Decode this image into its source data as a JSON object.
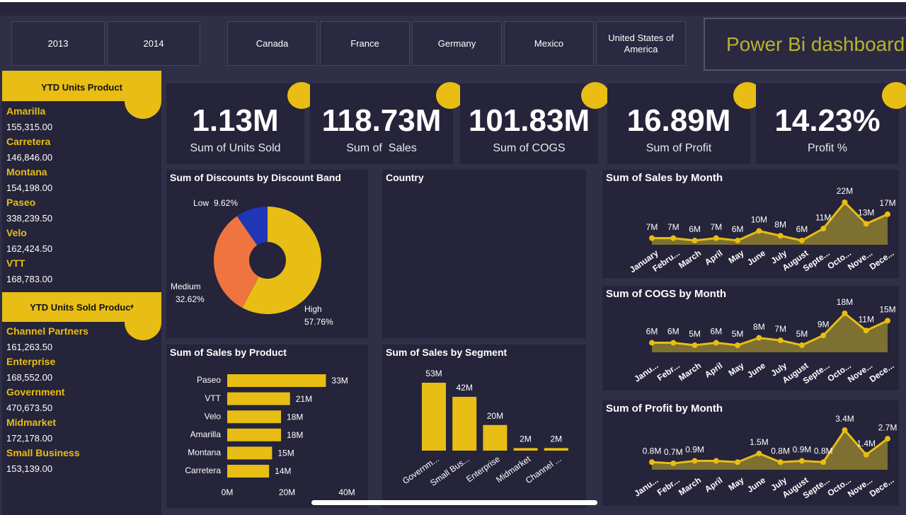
{
  "filters": {
    "years": [
      "2013",
      "2014"
    ],
    "countries": [
      "Canada",
      "France",
      "Germany",
      "Mexico",
      "United States of America"
    ]
  },
  "banner": "Power Bi dashboard",
  "sidebar": [
    {
      "title": "YTD Units Product",
      "items": [
        {
          "name": "Amarilla",
          "value": "155,315.00"
        },
        {
          "name": "Carretera",
          "value": "146,846.00"
        },
        {
          "name": "Montana",
          "value": "154,198.00"
        },
        {
          "name": "Paseo",
          "value": "338,239.50"
        },
        {
          "name": "Velo",
          "value": "162,424.50"
        },
        {
          "name": "VTT",
          "value": "168,783.00"
        }
      ]
    },
    {
      "title": "YTD Units Sold Product",
      "items": [
        {
          "name": "Channel Partners",
          "value": "161,263.50"
        },
        {
          "name": "Enterprise",
          "value": "168,552.00"
        },
        {
          "name": "Government",
          "value": "470,673.50"
        },
        {
          "name": "Midmarket",
          "value": "172,178.00"
        },
        {
          "name": "Small Business",
          "value": "153,139.00"
        }
      ]
    }
  ],
  "kpis": [
    {
      "value": "1.13M",
      "label": "Sum of Units Sold"
    },
    {
      "value": "118.73M",
      "label": "Sum of  Sales"
    },
    {
      "value": "101.83M",
      "label": "Sum of COGS"
    },
    {
      "value": "16.89M",
      "label": "Sum of Profit"
    },
    {
      "value": "14.23%",
      "label": "Profit %"
    }
  ],
  "country_panel": {
    "title": "Country"
  },
  "chart_data": [
    {
      "type": "donut",
      "title": "Sum of Discounts by Discount Band",
      "categories": [
        "Low",
        "Medium",
        "High"
      ],
      "values": [
        9.62,
        32.62,
        57.76
      ],
      "value_labels": [
        "9.62%",
        "32.62%",
        "57.76%"
      ],
      "colors": [
        "#1f36b5",
        "#ef7440",
        "#e8bd14"
      ]
    },
    {
      "type": "hbar",
      "title": "Sum of Sales by Product",
      "categories": [
        "Paseo",
        "VTT",
        "Velo",
        "Amarilla",
        "Montana",
        "Carretera"
      ],
      "values": [
        33,
        21,
        18,
        18,
        15,
        14
      ],
      "value_labels": [
        "33M",
        "21M",
        "18M",
        "18M",
        "15M",
        "14M"
      ],
      "color": "#e8bd14",
      "xlim": [
        0,
        40
      ],
      "xticks": [
        {
          "value": 0,
          "label": "0M"
        },
        {
          "value": 20,
          "label": "20M"
        },
        {
          "value": 40,
          "label": "40M"
        }
      ]
    },
    {
      "type": "bar",
      "title": "Sum of Sales by Segment",
      "categories": [
        "Governm...",
        "Small Bus...",
        "Enterprise",
        "Midmarket",
        "Channel ..."
      ],
      "values": [
        53,
        42,
        20,
        2,
        2
      ],
      "value_labels": [
        "53M",
        "42M",
        "20M",
        "2M",
        "2M"
      ],
      "color": "#e8bd14"
    },
    {
      "type": "area",
      "title": "Sum of Sales by Month",
      "categories": [
        "January",
        "Febru...",
        "March",
        "April",
        "May",
        "June",
        "July",
        "August",
        "Septe...",
        "Octo...",
        "Nove...",
        "Dece..."
      ],
      "values": [
        7,
        7,
        6,
        7,
        6,
        10,
        8,
        6,
        11,
        22,
        13,
        17
      ],
      "value_labels": [
        "7M",
        "7M",
        "6M",
        "7M",
        "6M",
        "10M",
        "8M",
        "6M",
        "11M",
        "22M",
        "13M",
        "17M"
      ],
      "color": "#e8bd14"
    },
    {
      "type": "area",
      "title": "Sum of COGS by Month",
      "categories": [
        "Janu...",
        "Febr...",
        "March",
        "April",
        "May",
        "June",
        "July",
        "August",
        "Septe...",
        "Octo...",
        "Nove...",
        "Dece..."
      ],
      "values": [
        6,
        6,
        5,
        6,
        5,
        8,
        7,
        5,
        9,
        18,
        11,
        15
      ],
      "value_labels": [
        "6M",
        "6M",
        "5M",
        "6M",
        "5M",
        "8M",
        "7M",
        "5M",
        "9M",
        "18M",
        "11M",
        "15M"
      ],
      "color": "#e8bd14"
    },
    {
      "type": "area",
      "title": "Sum of Profit by Month",
      "categories": [
        "Janu...",
        "Febr...",
        "March",
        "April",
        "May",
        "June",
        "July",
        "August",
        "Septe...",
        "Octo...",
        "Nove...",
        "Dece..."
      ],
      "values": [
        0.8,
        0.7,
        0.9,
        0.9,
        0.8,
        1.5,
        0.8,
        0.9,
        0.8,
        3.4,
        1.4,
        2.7
      ],
      "value_labels": [
        "0.8M",
        "0.7M",
        "0.9M",
        null,
        null,
        "1.5M",
        "0.8M",
        "0.9M",
        "0.8M",
        "3.4M",
        "1.4M",
        "2.7M"
      ],
      "color": "#e8bd14"
    }
  ]
}
